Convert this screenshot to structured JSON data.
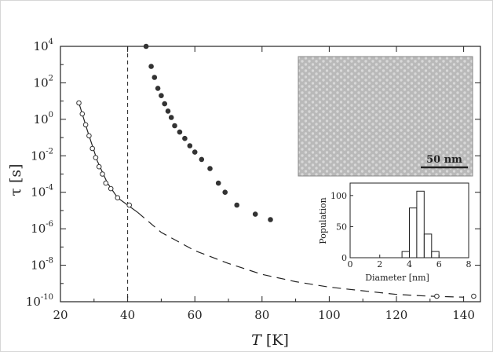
{
  "chart_data": [
    {
      "type": "scatter",
      "xlabel_italic": "T",
      "xlabel_unit": "[K]",
      "ylabel": "τ [s]",
      "xlim": [
        20,
        145
      ],
      "ylim_log10": [
        -10,
        4
      ],
      "log_y": true,
      "x_ticks": [
        20,
        40,
        60,
        80,
        100,
        120,
        140
      ],
      "y_ticks": [
        {
          "base": "10",
          "exp": "4",
          "e": 4
        },
        {
          "base": "10",
          "exp": "2",
          "e": 2
        },
        {
          "base": "10",
          "exp": "0",
          "e": 0
        },
        {
          "base": "10",
          "exp": "-2",
          "e": -2
        },
        {
          "base": "10",
          "exp": "-4",
          "e": -4
        },
        {
          "base": "10",
          "exp": "-6",
          "e": -6
        },
        {
          "base": "10",
          "exp": "-8",
          "e": -8
        },
        {
          "base": "10",
          "exp": "-10",
          "e": -10
        }
      ],
      "vline_x": 40,
      "series": [
        {
          "marker": "open-circle",
          "points": [
            [
              25.5,
              0.9
            ],
            [
              26.5,
              0.3
            ],
            [
              27.5,
              -0.3
            ],
            [
              28.5,
              -0.9
            ],
            [
              29.5,
              -1.6
            ],
            [
              30.5,
              -2.1
            ],
            [
              31.5,
              -2.6
            ],
            [
              32.5,
              -3.0
            ],
            [
              33.5,
              -3.5
            ],
            [
              35,
              -3.8
            ],
            [
              37,
              -4.3
            ],
            [
              40.5,
              -4.7
            ],
            [
              132,
              -9.7
            ],
            [
              143,
              -9.7
            ]
          ]
        },
        {
          "marker": "filled-circle",
          "points": [
            [
              45.5,
              4.0
            ],
            [
              47,
              2.9
            ],
            [
              48,
              2.3
            ],
            [
              49,
              1.7
            ],
            [
              50,
              1.3
            ],
            [
              51,
              0.85
            ],
            [
              52,
              0.45
            ],
            [
              53,
              0.1
            ],
            [
              54,
              -0.35
            ],
            [
              55.5,
              -0.7
            ],
            [
              57,
              -1.05
            ],
            [
              58.5,
              -1.45
            ],
            [
              60,
              -1.8
            ],
            [
              62,
              -2.2
            ],
            [
              64.5,
              -2.7
            ],
            [
              67,
              -3.5
            ],
            [
              69,
              -4.0
            ],
            [
              72.5,
              -4.7
            ],
            [
              78,
              -5.2
            ],
            [
              82.5,
              -5.5
            ]
          ]
        },
        {
          "marker": "line-solid",
          "points": [
            [
              25.5,
              0.9
            ],
            [
              28,
              -0.6
            ],
            [
              31,
              -2.3
            ],
            [
              34,
              -3.5
            ],
            [
              37,
              -4.3
            ],
            [
              40,
              -4.7
            ],
            [
              43,
              -5.1
            ]
          ]
        },
        {
          "marker": "line-dashed",
          "points": [
            [
              43,
              -5.1
            ],
            [
              50,
              -6.2
            ],
            [
              60,
              -7.2
            ],
            [
              70,
              -7.9
            ],
            [
              80,
              -8.5
            ],
            [
              90,
              -8.9
            ],
            [
              100,
              -9.2
            ],
            [
              110,
              -9.4
            ],
            [
              120,
              -9.6
            ],
            [
              130,
              -9.7
            ],
            [
              140,
              -9.75
            ]
          ]
        }
      ]
    },
    {
      "type": "bar",
      "xlabel": "Diameter [nm]",
      "ylabel": "Population",
      "xlim": [
        0,
        8
      ],
      "ylim": [
        0,
        120
      ],
      "x_ticks": [
        0,
        2,
        4,
        6,
        8
      ],
      "y_ticks": [
        0,
        50,
        100
      ],
      "bins": [
        {
          "x0": 3.5,
          "x1": 4.0,
          "v": 10
        },
        {
          "x0": 4.0,
          "x1": 4.5,
          "v": 80
        },
        {
          "x0": 4.5,
          "x1": 5.0,
          "v": 107
        },
        {
          "x0": 5.0,
          "x1": 5.5,
          "v": 38
        },
        {
          "x0": 5.5,
          "x1": 6.0,
          "v": 10
        }
      ]
    }
  ],
  "micrograph": {
    "scale_label": "50 nm"
  }
}
